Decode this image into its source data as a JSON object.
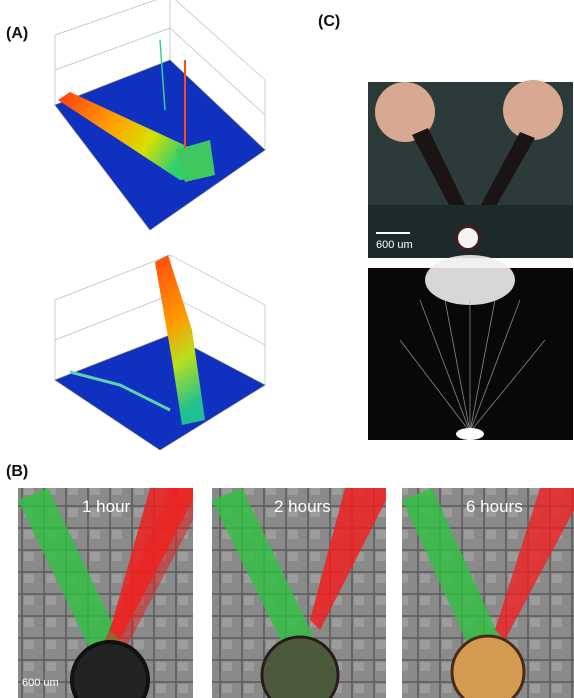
{
  "panels": {
    "a": {
      "label": "(A)"
    },
    "b": {
      "label": "(B)",
      "frames": [
        {
          "caption": "1 hour",
          "scale_bar": "600 um"
        },
        {
          "caption": "2 hours"
        },
        {
          "caption": "6 hours"
        }
      ]
    },
    "c": {
      "label": "(C)",
      "scale_bar": "600 um"
    }
  }
}
